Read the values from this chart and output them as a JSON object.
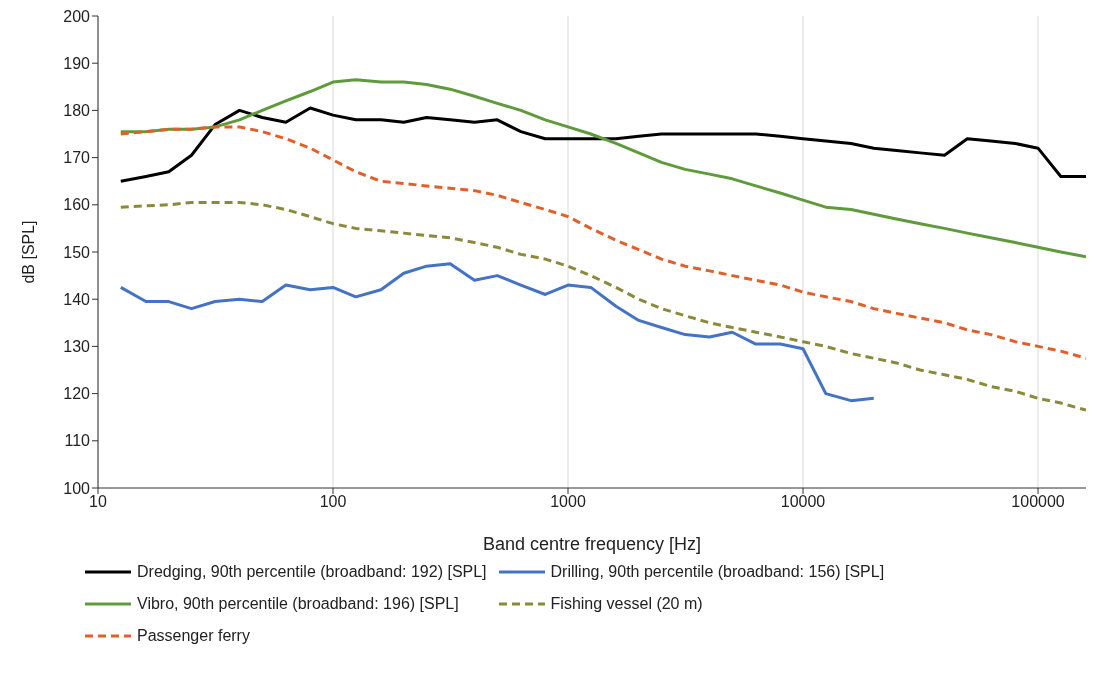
{
  "chart_data": {
    "type": "line",
    "xlabel": "Band centre frequency [Hz]",
    "ylabel": "dB [SPL]",
    "log": "x",
    "grid": "x",
    "legend": "bottom",
    "marker": "none",
    "xlim": [
      10,
      160000
    ],
    "xticks": [
      10,
      100,
      1000,
      10000,
      100000
    ],
    "ylim": [
      100,
      200
    ],
    "yticks": [
      100,
      110,
      120,
      130,
      140,
      150,
      160,
      170,
      180,
      190,
      200
    ],
    "x": [
      12.5,
      16,
      20,
      25,
      31.5,
      40,
      50,
      63,
      80,
      100,
      125,
      160,
      200,
      250,
      315,
      400,
      500,
      630,
      800,
      1000,
      1250,
      1600,
      2000,
      2500,
      3150,
      4000,
      5000,
      6300,
      8000,
      10000,
      12500,
      16000,
      20000,
      25000,
      31500,
      40000,
      50000,
      63000,
      80000,
      100000,
      125000,
      160000
    ],
    "series": [
      {
        "name": "Dredging, 90th percentile (broadband: 192) [SPL]",
        "color": "#000000",
        "line_style": "solid",
        "values": [
          165,
          166,
          167,
          170.5,
          177,
          180,
          178.5,
          177.5,
          180.5,
          179,
          178,
          178,
          177.5,
          178.5,
          178,
          177.5,
          178,
          175.5,
          174,
          174,
          174,
          174,
          174.5,
          175,
          175,
          175,
          175,
          175,
          174.5,
          174,
          173.5,
          173,
          172,
          171.5,
          171,
          170.5,
          174,
          173.5,
          173,
          172,
          166,
          166
        ]
      },
      {
        "name": "Drilling, 90th percentile (broadband: 156) [SPL]",
        "color": "#4472c4",
        "line_style": "solid",
        "values": [
          142.5,
          139.5,
          139.5,
          138,
          139.5,
          140,
          139.5,
          143,
          142,
          142.5,
          140.5,
          142,
          145.5,
          147,
          147.5,
          144,
          145,
          143,
          141,
          143,
          142.5,
          138.5,
          135.5,
          134,
          132.5,
          132,
          133,
          130.5,
          130.5,
          129.5,
          120,
          118.5,
          119,
          null,
          null,
          null,
          null,
          null,
          null,
          null,
          null,
          null
        ]
      },
      {
        "name": "Vibro, 90th percentile (broadband: 196) [SPL]",
        "color": "#5f9a3c",
        "line_style": "solid",
        "values": [
          175.5,
          175.5,
          176,
          176,
          176.5,
          178,
          180,
          182,
          184,
          186,
          186.5,
          186,
          186,
          185.5,
          184.5,
          183,
          181.5,
          180,
          178,
          176.5,
          175,
          173,
          171,
          169,
          167.5,
          166.5,
          165.5,
          164,
          162.5,
          161,
          159.5,
          159,
          158,
          157,
          156,
          155,
          154,
          153,
          152,
          151,
          150,
          149
        ]
      },
      {
        "name": "Fishing vessel (20 m)",
        "color": "#8a8a3a",
        "line_style": "dashed",
        "values": [
          159.5,
          159.8,
          160,
          160.5,
          160.5,
          160.5,
          160,
          159,
          157.5,
          156,
          155,
          154.5,
          154,
          153.5,
          153,
          152,
          151,
          149.5,
          148.5,
          147,
          145,
          142.5,
          140,
          138,
          136.5,
          135,
          134,
          133,
          132,
          131,
          130,
          128.5,
          127.5,
          126.5,
          125,
          124,
          123,
          121.5,
          120.5,
          119,
          118,
          116.5
        ]
      },
      {
        "name": "Passenger ferry",
        "color": "#e0602a",
        "line_style": "dashed",
        "values": [
          175,
          175.5,
          176,
          176,
          176.5,
          176.5,
          175.5,
          174,
          172,
          169.5,
          167,
          165,
          164.5,
          164,
          163.5,
          163,
          162,
          160.5,
          159,
          157.5,
          155,
          152.5,
          150.5,
          148.5,
          147,
          146,
          145,
          144,
          143,
          141.5,
          140.5,
          139.5,
          138,
          137,
          136,
          135,
          133.5,
          132.5,
          131,
          130,
          129,
          127.5
        ]
      }
    ]
  }
}
